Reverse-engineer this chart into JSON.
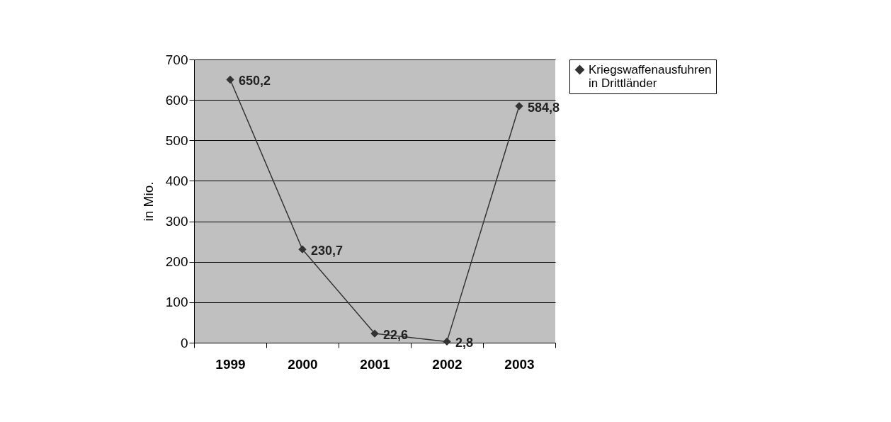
{
  "chart_data": {
    "type": "line",
    "ylabel": "in Mio.",
    "categories": [
      "1999",
      "2000",
      "2001",
      "2002",
      "2003"
    ],
    "series": [
      {
        "name": "Kriegswaffenausfuhren in Drittländer",
        "color": "#333333",
        "values": [
          650.2,
          230.7,
          22.6,
          2.8,
          584.8
        ],
        "value_labels": [
          "650,2",
          "230,7",
          "22,6",
          "2,8",
          "584,8"
        ]
      }
    ],
    "ylim": [
      0,
      700
    ],
    "yticks": [
      0,
      100,
      200,
      300,
      400,
      500,
      600,
      700
    ],
    "grid": "y",
    "legend": "right",
    "marker": "diamond",
    "line_style": "solid"
  }
}
